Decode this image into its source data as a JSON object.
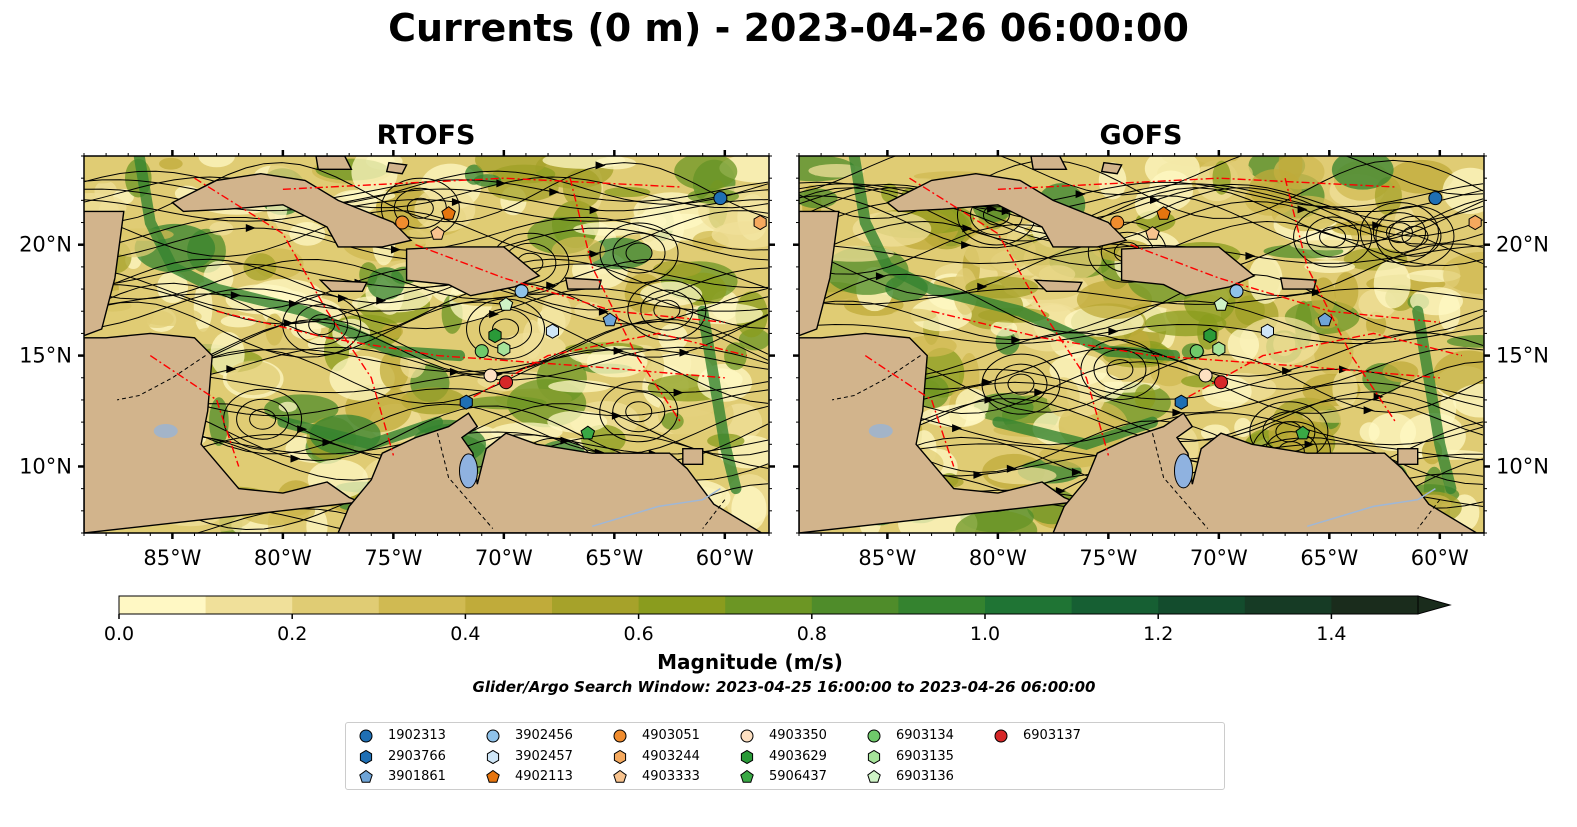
{
  "title": "Currents (0 m) - 2023-04-26 06:00:00",
  "panels": [
    {
      "title": "RTOFS",
      "model": "rtofs"
    },
    {
      "title": "GOFS",
      "model": "gofs"
    }
  ],
  "map": {
    "lon_range": [
      -89,
      -58
    ],
    "lat_range": [
      7,
      24
    ],
    "lon_ticks": [
      "85°W",
      "80°W",
      "75°W",
      "70°W",
      "65°W",
      "60°W"
    ],
    "lat_ticks": [
      "20°N",
      "15°N",
      "10°N"
    ],
    "land_color": "#d2b48c",
    "lake_color": "#8fb2e0",
    "eez_color": "#ff0000",
    "bathymetry_label": "1000"
  },
  "colorbar": {
    "label": "Magnitude (m/s)",
    "ticks": [
      "0.0",
      "0.2",
      "0.4",
      "0.6",
      "0.8",
      "1.0",
      "1.2",
      "1.4"
    ],
    "min": 0.0,
    "max": 1.5,
    "extend": "max",
    "colors": [
      "#fff8c4",
      "#f0e09a",
      "#e0cc74",
      "#d0ba52",
      "#c0ab3a",
      "#a6a22a",
      "#8a9c1e",
      "#6c9624",
      "#4f8c2a",
      "#34832f",
      "#1f7434",
      "#165f33",
      "#134c2d",
      "#163b25",
      "#1a2c1c"
    ]
  },
  "search_window": "Glider/Argo Search Window: 2023-04-25 16:00:00 to 2023-04-26 06:00:00",
  "legend": [
    {
      "id": "1902313",
      "shape": "circle",
      "color": "#1f6fb4"
    },
    {
      "id": "2903766",
      "shape": "hexagon",
      "color": "#1f6fb4"
    },
    {
      "id": "3901861",
      "shape": "pentagon",
      "color": "#6fa4d6"
    },
    {
      "id": "3902456",
      "shape": "circle",
      "color": "#8fc2ea"
    },
    {
      "id": "3902457",
      "shape": "hexagon",
      "color": "#cfe6f7"
    },
    {
      "id": "4902113",
      "shape": "pentagon",
      "color": "#e6750f"
    },
    {
      "id": "4903051",
      "shape": "circle",
      "color": "#f08c2e"
    },
    {
      "id": "4903244",
      "shape": "hexagon",
      "color": "#f5a95e"
    },
    {
      "id": "4903333",
      "shape": "pentagon",
      "color": "#f8c38e"
    },
    {
      "id": "4903350",
      "shape": "circle",
      "color": "#fde0c2"
    },
    {
      "id": "4903629",
      "shape": "hexagon",
      "color": "#2a9a38"
    },
    {
      "id": "5906437",
      "shape": "pentagon",
      "color": "#39a845"
    },
    {
      "id": "6903134",
      "shape": "circle",
      "color": "#6fc96a"
    },
    {
      "id": "6903135",
      "shape": "hexagon",
      "color": "#a6e39a"
    },
    {
      "id": "6903136",
      "shape": "pentagon",
      "color": "#cff3c6"
    },
    {
      "id": "6903137",
      "shape": "circle",
      "color": "#d62728"
    }
  ],
  "floats": [
    {
      "id": "1902313",
      "lon": -60.2,
      "lat": 22.1
    },
    {
      "id": "2903766",
      "lon": -71.7,
      "lat": 12.9
    },
    {
      "id": "3901861",
      "lon": -65.2,
      "lat": 16.6
    },
    {
      "id": "3902456",
      "lon": -69.2,
      "lat": 17.9
    },
    {
      "id": "3902457",
      "lon": -67.8,
      "lat": 16.1
    },
    {
      "id": "4902113",
      "lon": -72.5,
      "lat": 21.4
    },
    {
      "id": "4903051",
      "lon": -74.6,
      "lat": 21.0
    },
    {
      "id": "4903244",
      "lon": -58.4,
      "lat": 21.0
    },
    {
      "id": "4903333",
      "lon": -73.0,
      "lat": 20.5
    },
    {
      "id": "4903350",
      "lon": -70.6,
      "lat": 14.1
    },
    {
      "id": "4903629",
      "lon": -70.4,
      "lat": 15.9
    },
    {
      "id": "5906437",
      "lon": -66.2,
      "lat": 11.5
    },
    {
      "id": "6903134",
      "lon": -71.0,
      "lat": 15.2
    },
    {
      "id": "6903135",
      "lon": -70.0,
      "lat": 15.3
    },
    {
      "id": "6903136",
      "lon": -69.9,
      "lat": 17.3
    },
    {
      "id": "6903137",
      "lon": -69.9,
      "lat": 13.8
    }
  ]
}
